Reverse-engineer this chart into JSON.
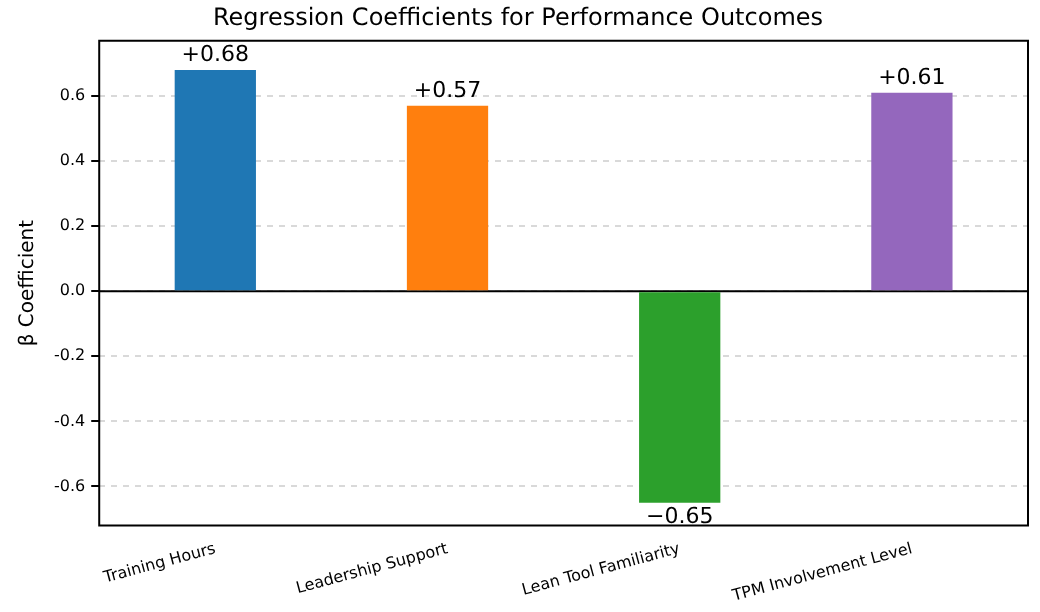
{
  "chart_data": {
    "type": "bar",
    "title": "Regression Coefficients for Performance Outcomes",
    "ylabel": "β Coefficient",
    "categories": [
      "Training Hours",
      "Leadership Support",
      "Lean Tool Familiarity",
      "TPM Involvement Level"
    ],
    "values": [
      0.68,
      0.57,
      -0.65,
      0.61
    ],
    "colors": [
      "#1f77b4",
      "#ff7f0e",
      "#2ca02c",
      "#9467bd"
    ],
    "value_labels": [
      "+0.68",
      "+0.57",
      "−0.65",
      "+0.61"
    ],
    "ylim": [
      -0.72,
      0.77
    ],
    "yticks": [
      {
        "value": -0.6,
        "label": "-0.6"
      },
      {
        "value": -0.4,
        "label": "-0.4"
      },
      {
        "value": -0.2,
        "label": "-0.2"
      },
      {
        "value": 0,
        "label": "0.0"
      },
      {
        "value": 0.2,
        "label": "0.2"
      },
      {
        "value": 0.4,
        "label": "0.4"
      },
      {
        "value": 0.6,
        "label": "0.6"
      }
    ],
    "ref_lines": [
      {
        "axis": "y",
        "value": 0,
        "color": "#000000"
      }
    ],
    "grid": "y",
    "legend": false
  }
}
